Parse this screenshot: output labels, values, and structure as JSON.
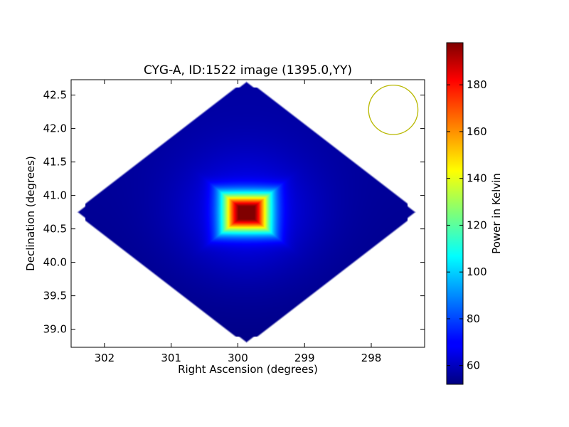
{
  "chart_data": {
    "type": "heatmap",
    "title": "CYG-A, ID:1522 image (1395.0,YY)",
    "xlabel": "Right Ascension (degrees)",
    "ylabel": "Declination (degrees)",
    "colorbar_label": "Power in Kelvin",
    "x_axis_inverted": true,
    "xlim": [
      302.5,
      297.2
    ],
    "ylim": [
      38.73,
      42.73
    ],
    "x_ticks": [
      302,
      301,
      300,
      299,
      298
    ],
    "x_tick_labels": [
      "302",
      "301",
      "300",
      "299",
      "298"
    ],
    "y_ticks": [
      39.0,
      39.5,
      40.0,
      40.5,
      41.0,
      41.5,
      42.0,
      42.5
    ],
    "y_tick_labels": [
      "39.0",
      "39.5",
      "40.0",
      "40.5",
      "41.0",
      "41.5",
      "42.0",
      "42.5"
    ],
    "colorbar_range": [
      52,
      198
    ],
    "colorbar_ticks": [
      60,
      80,
      100,
      120,
      140,
      160,
      180
    ],
    "colorbar_tick_labels": [
      "60",
      "80",
      "100",
      "120",
      "140",
      "160",
      "180"
    ],
    "colormap": "jet",
    "beam_color": "#b8b800",
    "source": {
      "ra": 299.87,
      "dec": 40.74,
      "peak_kelvin": 198
    },
    "background_kelvin": 55,
    "coverage_center": {
      "ra": 299.87,
      "dec": 40.75
    },
    "coverage_half_width_ra": 2.6,
    "coverage_half_width_dec": 2.0,
    "beam": {
      "ra": 297.67,
      "dec": 42.28,
      "radius_ra": 0.37
    }
  }
}
